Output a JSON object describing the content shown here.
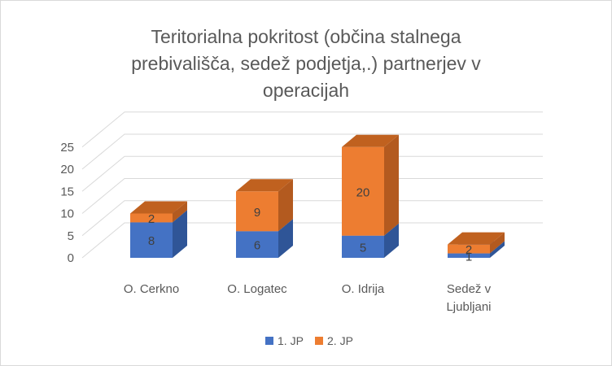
{
  "chart_data": {
    "type": "bar",
    "stacked": true,
    "style": "3d",
    "title_lines": [
      "Teritorialna pokritost (občina stalnega",
      "prebivališča, sedež podjetja,.) partnerjev v",
      "operacijah"
    ],
    "categories": [
      [
        "O. Cerkno"
      ],
      [
        "O. Logatec"
      ],
      [
        "O. Idrija"
      ],
      [
        "Sedež v",
        "Ljubljani"
      ]
    ],
    "series": [
      {
        "name": "1. JP",
        "values": [
          8,
          6,
          5,
          1
        ],
        "color": "#4472C4",
        "side_color": "#2F5597",
        "top_color": "#5B86D4"
      },
      {
        "name": "2. JP",
        "values": [
          2,
          9,
          20,
          2
        ],
        "color": "#ED7D31",
        "side_color": "#B35A1F",
        "top_color": "#C0611F"
      }
    ],
    "yticks": [
      0,
      5,
      10,
      15,
      20,
      25
    ],
    "ylim": [
      0,
      25
    ],
    "grid": true,
    "legend_position": "bottom"
  }
}
